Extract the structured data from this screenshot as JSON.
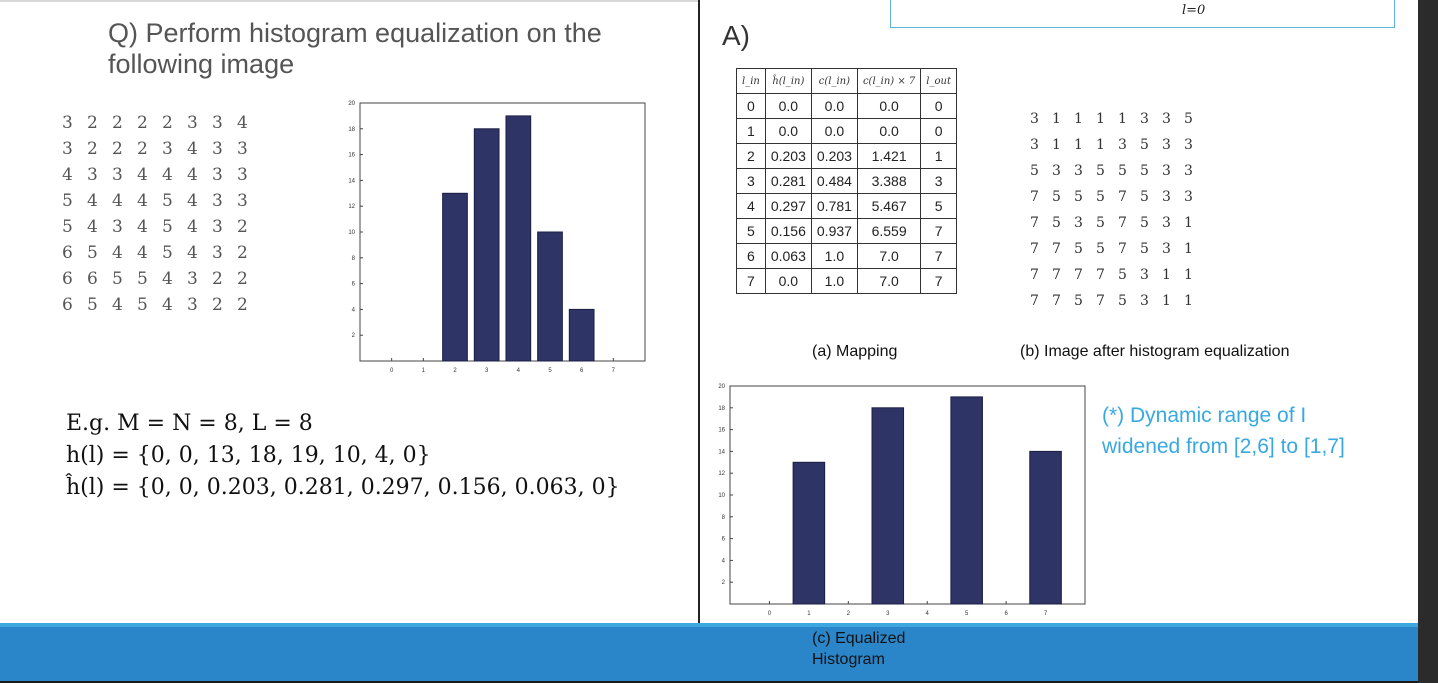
{
  "header": {
    "formula_fragment": "l=0"
  },
  "question": {
    "title": "Q) Perform histogram equalization on the following image"
  },
  "answer": {
    "title": "A)"
  },
  "input_image": [
    [
      3,
      2,
      2,
      2,
      2,
      3,
      3,
      4
    ],
    [
      3,
      2,
      2,
      2,
      3,
      4,
      3,
      3
    ],
    [
      4,
      3,
      3,
      4,
      4,
      4,
      3,
      3
    ],
    [
      5,
      4,
      4,
      4,
      5,
      4,
      3,
      3
    ],
    [
      5,
      4,
      3,
      4,
      5,
      4,
      3,
      2
    ],
    [
      6,
      5,
      4,
      4,
      5,
      4,
      3,
      2
    ],
    [
      6,
      6,
      5,
      5,
      4,
      3,
      2,
      2
    ],
    [
      6,
      5,
      4,
      5,
      4,
      3,
      2,
      2
    ]
  ],
  "example": {
    "line1": "E.g. M = N = 8,  L = 8",
    "line2": "h(l) = {0, 0, 13, 18, 19, 10, 4, 0}",
    "line3": "ĥ(l) = {0, 0, 0.203, 0.281, 0.297, 0.156, 0.063, 0}"
  },
  "mapping": {
    "headers": [
      "l_in",
      "ĥ(l_in)",
      "c(l_in)",
      "c(l_in) × 7",
      "l_out"
    ],
    "rows": [
      [
        "0",
        "0.0",
        "0.0",
        "0.0",
        "0"
      ],
      [
        "1",
        "0.0",
        "0.0",
        "0.0",
        "0"
      ],
      [
        "2",
        "0.203",
        "0.203",
        "1.421",
        "1"
      ],
      [
        "3",
        "0.281",
        "0.484",
        "3.388",
        "3"
      ],
      [
        "4",
        "0.297",
        "0.781",
        "5.467",
        "5"
      ],
      [
        "5",
        "0.156",
        "0.937",
        "6.559",
        "7"
      ],
      [
        "6",
        "0.063",
        "1.0",
        "7.0",
        "7"
      ],
      [
        "7",
        "0.0",
        "1.0",
        "7.0",
        "7"
      ]
    ],
    "caption": "(a) Mapping"
  },
  "output_image": {
    "rows": [
      [
        3,
        1,
        1,
        1,
        1,
        3,
        3,
        5
      ],
      [
        3,
        1,
        1,
        1,
        3,
        5,
        3,
        3
      ],
      [
        5,
        3,
        3,
        5,
        5,
        5,
        3,
        3
      ],
      [
        7,
        5,
        5,
        5,
        7,
        5,
        3,
        3
      ],
      [
        7,
        5,
        3,
        5,
        7,
        5,
        3,
        1
      ],
      [
        7,
        7,
        5,
        5,
        7,
        5,
        3,
        1
      ],
      [
        7,
        7,
        7,
        7,
        5,
        3,
        1,
        1
      ],
      [
        7,
        7,
        5,
        7,
        5,
        3,
        1,
        1
      ]
    ],
    "caption": "(b) Image after histogram equalization"
  },
  "note": {
    "line1": "(*) Dynamic range of I",
    "line2": "widened from [2,6] to [1,7]"
  },
  "footer": {
    "caption_line1": "(c) Equalized",
    "caption_line2": "Histogram"
  },
  "colors": {
    "bar": "#2e3466",
    "accent": "#38a9e0",
    "band": "#2a86c8"
  },
  "chart_data": [
    {
      "type": "bar",
      "title": "",
      "categories": [
        "0",
        "1",
        "2",
        "3",
        "4",
        "5",
        "6",
        "7"
      ],
      "values": [
        0,
        0,
        13,
        18,
        19,
        10,
        4,
        0
      ],
      "yticks": [
        "2",
        "4",
        "6",
        "8",
        "10",
        "12",
        "14",
        "16",
        "18",
        "20"
      ],
      "ylim": [
        0,
        20
      ]
    },
    {
      "type": "bar",
      "title": "",
      "categories": [
        "0",
        "1",
        "2",
        "3",
        "4",
        "5",
        "6",
        "7"
      ],
      "values": [
        0,
        13,
        0,
        18,
        0,
        19,
        0,
        14
      ],
      "yticks": [
        "2",
        "4",
        "6",
        "8",
        "10",
        "12",
        "14",
        "16",
        "18",
        "20"
      ],
      "ylim": [
        0,
        20
      ]
    }
  ]
}
